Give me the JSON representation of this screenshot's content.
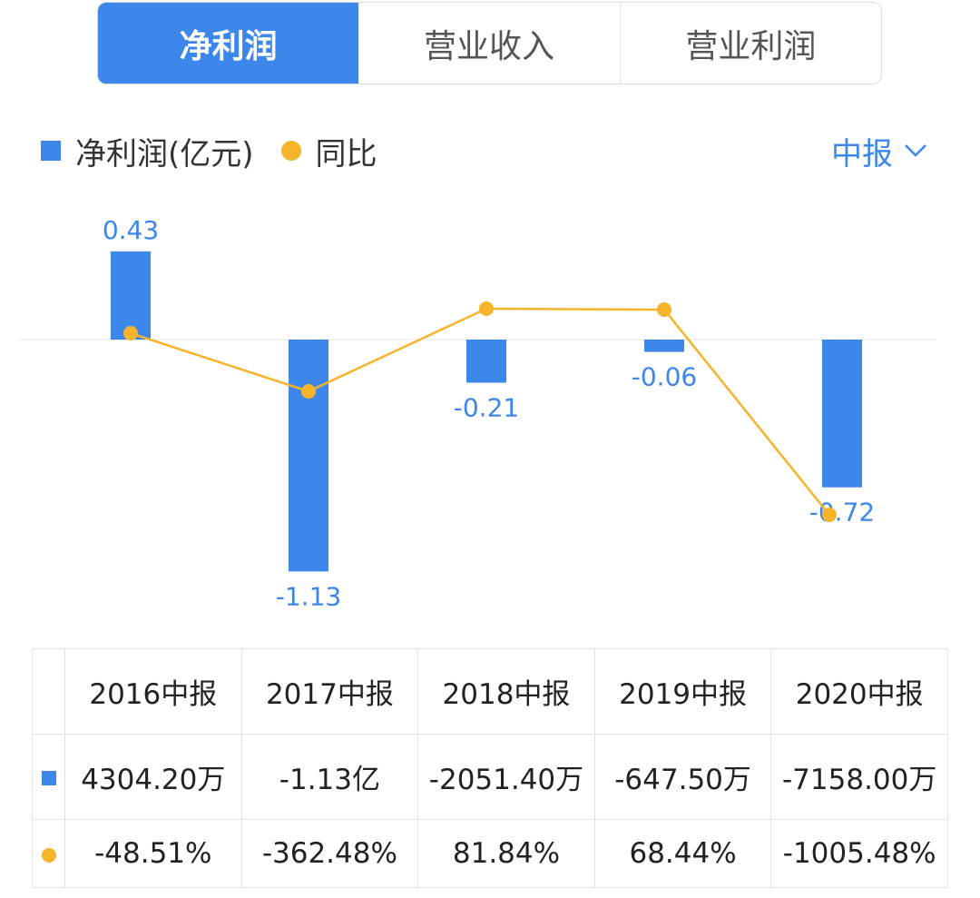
{
  "tabs": [
    "净利润",
    "营业收入",
    "营业利润"
  ],
  "legend": {
    "bar_label": "净利润(亿元)",
    "line_label": "同比"
  },
  "period_selector": "中报",
  "colors": {
    "bar": "#3d86ea",
    "line": "#f5b42a",
    "positive": "#e64545",
    "negative": "#1fa862"
  },
  "chart_data": {
    "type": "bar",
    "categories": [
      "2016中报",
      "2017中报",
      "2018中报",
      "2019中报",
      "2020中报"
    ],
    "series": [
      {
        "name": "净利润(亿元)",
        "type": "bar",
        "values": [
          0.43,
          -1.13,
          -0.21,
          -0.06,
          -0.72
        ],
        "labels": [
          "0.43",
          "-1.13",
          "-0.21",
          "-0.06",
          "-0.72"
        ]
      },
      {
        "name": "同比",
        "type": "line",
        "values": [
          -48.51,
          -362.48,
          81.84,
          68.44,
          -1005.48
        ]
      }
    ]
  },
  "table": {
    "headers": [
      "2016中报",
      "2017中报",
      "2018中报",
      "2019中报",
      "2020中报"
    ],
    "profit_row": [
      "4304.20万",
      "-1.13亿",
      "-2051.40万",
      "-647.50万",
      "-7158.00万"
    ],
    "yoy_row": [
      "-48.51%",
      "-362.48%",
      "81.84%",
      "68.44%",
      "-1005.48%"
    ]
  }
}
